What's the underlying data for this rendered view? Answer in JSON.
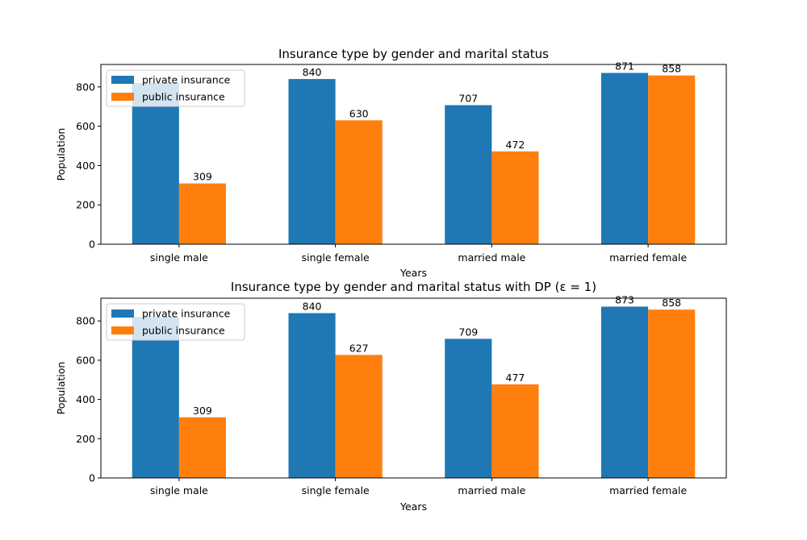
{
  "chart_data": [
    {
      "type": "bar",
      "title": "Insurance type by gender and marital status",
      "xlabel": "Years",
      "ylabel": "Population",
      "categories": [
        "single male",
        "single female",
        "married male",
        "married female"
      ],
      "series": [
        {
          "name": "private insurance",
          "color": "#1f77b4",
          "values": [
            820,
            840,
            707,
            871
          ]
        },
        {
          "name": "public insurance",
          "color": "#ff7f0e",
          "values": [
            309,
            630,
            472,
            858
          ]
        }
      ],
      "data_labels": [
        [
          "",
          "840",
          "707",
          "871"
        ],
        [
          "309",
          "630",
          "472",
          "858"
        ]
      ],
      "ylim": [
        0,
        914
      ],
      "yticks": [
        0,
        200,
        400,
        600,
        800
      ],
      "legend": "upper left",
      "grid": false
    },
    {
      "type": "bar",
      "title": "Insurance type by gender and marital status with DP (ε = 1)",
      "xlabel": "Years",
      "ylabel": "Population",
      "categories": [
        "single male",
        "single female",
        "married male",
        "married female"
      ],
      "series": [
        {
          "name": "private insurance",
          "color": "#1f77b4",
          "values": [
            820,
            840,
            709,
            873
          ]
        },
        {
          "name": "public insurance",
          "color": "#ff7f0e",
          "values": [
            309,
            627,
            477,
            858
          ]
        }
      ],
      "data_labels": [
        [
          "",
          "840",
          "709",
          "873"
        ],
        [
          "309",
          "627",
          "477",
          "858"
        ]
      ],
      "ylim": [
        0,
        916
      ],
      "yticks": [
        0,
        200,
        400,
        600,
        800
      ],
      "legend": "upper left",
      "grid": false
    }
  ]
}
